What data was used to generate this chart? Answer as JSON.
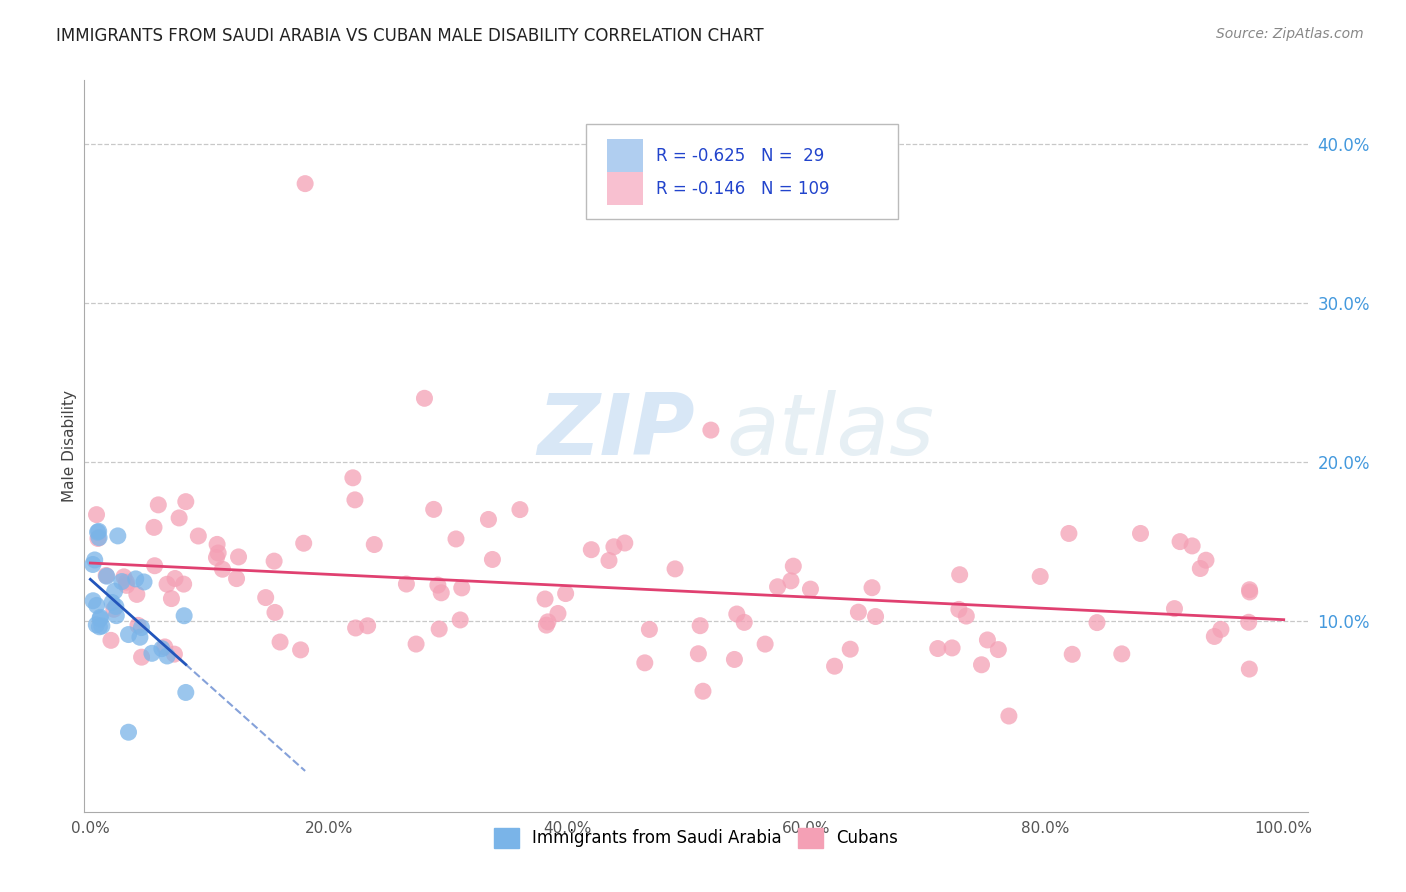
{
  "title": "IMMIGRANTS FROM SAUDI ARABIA VS CUBAN MALE DISABILITY CORRELATION CHART",
  "source": "Source: ZipAtlas.com",
  "ylabel": "Male Disability",
  "watermark_zip": "ZIP",
  "watermark_atlas": "atlas",
  "blue_dot_color": "#7ab4e8",
  "pink_dot_color": "#f4a0b5",
  "blue_line_color": "#2255bb",
  "pink_line_color": "#e04070",
  "legend_blue_fill": "#b0cef0",
  "legend_pink_fill": "#f8c0d0",
  "legend_text_color": "#2244cc",
  "xtick_labels": [
    "0.0%",
    "20.0%",
    "40.0%",
    "60.0%",
    "80.0%",
    "100.0%"
  ],
  "xtick_vals": [
    0.0,
    0.2,
    0.4,
    0.6,
    0.8,
    1.0
  ],
  "ytick_labels_right": [
    "10.0%",
    "20.0%",
    "30.0%",
    "40.0%"
  ],
  "yticks_right": [
    0.1,
    0.2,
    0.3,
    0.4
  ],
  "ytick_color": "#4499dd",
  "xlim": [
    -0.005,
    1.02
  ],
  "ylim": [
    -0.02,
    0.44
  ],
  "grid_color": "#c8c8c8",
  "spine_color": "#aaaaaa"
}
